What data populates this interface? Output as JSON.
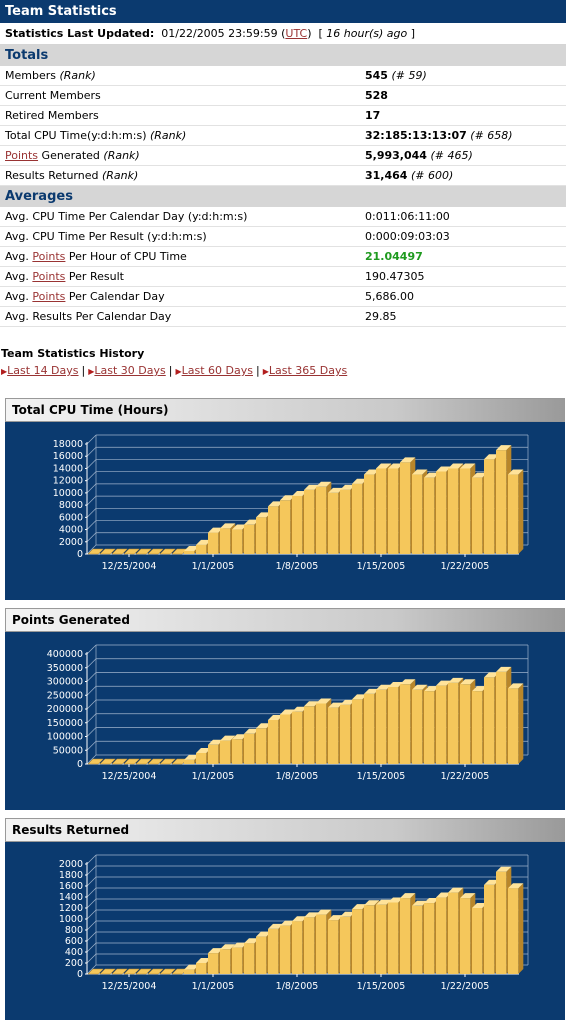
{
  "title": "Team Statistics",
  "updated": {
    "label": "Statistics Last Updated:",
    "date": "01/22/2005 23:59:59",
    "tz": "UTC",
    "ago": "16 hour(s) ago"
  },
  "totals": {
    "header": "Totals",
    "rows": [
      {
        "pre": "Members",
        "link": "",
        "post": "",
        "rank": "(Rank)",
        "value": "545",
        "value_rank": "(# 59)"
      },
      {
        "pre": "Current Members",
        "link": "",
        "post": "",
        "rank": "",
        "value": "528",
        "value_rank": ""
      },
      {
        "pre": "Retired Members",
        "link": "",
        "post": "",
        "rank": "",
        "value": "17",
        "value_rank": ""
      },
      {
        "pre": "Total CPU Time(y:d:h:m:s)",
        "link": "",
        "post": "",
        "rank": "(Rank)",
        "value": "32:185:13:13:07",
        "value_rank": "(# 658)"
      },
      {
        "pre": "",
        "link": "Points",
        "post": " Generated",
        "rank": "(Rank)",
        "value": "5,993,044",
        "value_rank": "(# 465)"
      },
      {
        "pre": "Results Returned",
        "link": "",
        "post": "",
        "rank": "(Rank)",
        "value": "31,464",
        "value_rank": "(# 600)"
      }
    ]
  },
  "averages": {
    "header": "Averages",
    "rows": [
      {
        "pre": "Avg. CPU Time Per Calendar Day (y:d:h:m:s)",
        "link": "",
        "post": "",
        "value": "0:011:06:11:00"
      },
      {
        "pre": "Avg. CPU Time Per Result (y:d:h:m:s)",
        "link": "",
        "post": "",
        "value": "0:000:09:03:03"
      },
      {
        "pre": "Avg. ",
        "link": "Points",
        "post": " Per Hour of CPU Time",
        "value": "21.04497"
      },
      {
        "pre": "Avg. ",
        "link": "Points",
        "post": " Per Result",
        "value": "190.47305"
      },
      {
        "pre": "Avg. ",
        "link": "Points",
        "post": " Per Calendar Day",
        "value": "5,686.00"
      },
      {
        "pre": "Avg. Results Per Calendar Day",
        "link": "",
        "post": "",
        "value": "29.85"
      }
    ]
  },
  "history": {
    "title": "Team Statistics History",
    "links": [
      "Last 14 Days",
      "Last 30 Days",
      "Last 60 Days",
      "Last 365 Days"
    ]
  },
  "colors": {
    "navy": "#0b3a6f",
    "bar": "#f5c75b",
    "bar_side": "#b8862a",
    "bar_top": "#ffe39a",
    "stripe": "#1c3f6e",
    "link": "#993333",
    "green": "#1f9a1f"
  },
  "chart_data": [
    {
      "type": "bar",
      "title": "Total CPU Time (Hours)",
      "categories_labels": [
        "12/25/2004",
        "1/1/2005",
        "1/8/2005",
        "1/15/2005",
        "1/22/2005"
      ],
      "yticks": [
        0,
        2000,
        4000,
        6000,
        8000,
        10000,
        12000,
        14000,
        16000,
        18000
      ],
      "ylim": [
        0,
        18000
      ],
      "values": [
        0,
        0,
        0,
        0,
        0,
        0,
        0,
        0,
        500,
        1500,
        3500,
        4200,
        4000,
        4800,
        6000,
        7800,
        8800,
        9500,
        10500,
        11000,
        10000,
        10500,
        11500,
        13000,
        14000,
        14000,
        15000,
        13000,
        12500,
        13500,
        14000,
        14000,
        12500,
        15500,
        17000,
        13000
      ]
    },
    {
      "type": "bar",
      "title": "Points Generated",
      "categories_labels": [
        "12/25/2004",
        "1/1/2005",
        "1/8/2005",
        "1/15/2005",
        "1/22/2005"
      ],
      "yticks": [
        0,
        50000,
        100000,
        150000,
        200000,
        250000,
        300000,
        350000,
        400000
      ],
      "ylim": [
        0,
        400000
      ],
      "values": [
        0,
        0,
        0,
        0,
        0,
        0,
        0,
        0,
        15000,
        40000,
        70000,
        85000,
        90000,
        110000,
        130000,
        160000,
        180000,
        190000,
        210000,
        220000,
        205000,
        215000,
        235000,
        255000,
        270000,
        280000,
        290000,
        270000,
        265000,
        285000,
        295000,
        290000,
        265000,
        315000,
        335000,
        275000
      ]
    },
    {
      "type": "bar",
      "title": "Results Returned",
      "categories_labels": [
        "12/25/2004",
        "1/1/2005",
        "1/8/2005",
        "1/15/2005",
        "1/22/2005"
      ],
      "yticks": [
        0,
        200,
        400,
        600,
        800,
        1000,
        1200,
        1400,
        1600,
        1800,
        2000
      ],
      "ylim": [
        0,
        2000
      ],
      "values": [
        0,
        0,
        0,
        0,
        0,
        0,
        0,
        0,
        80,
        200,
        380,
        450,
        480,
        560,
        680,
        820,
        880,
        960,
        1030,
        1080,
        980,
        1040,
        1180,
        1250,
        1260,
        1300,
        1380,
        1240,
        1290,
        1390,
        1480,
        1380,
        1200,
        1620,
        1860,
        1560
      ]
    }
  ]
}
